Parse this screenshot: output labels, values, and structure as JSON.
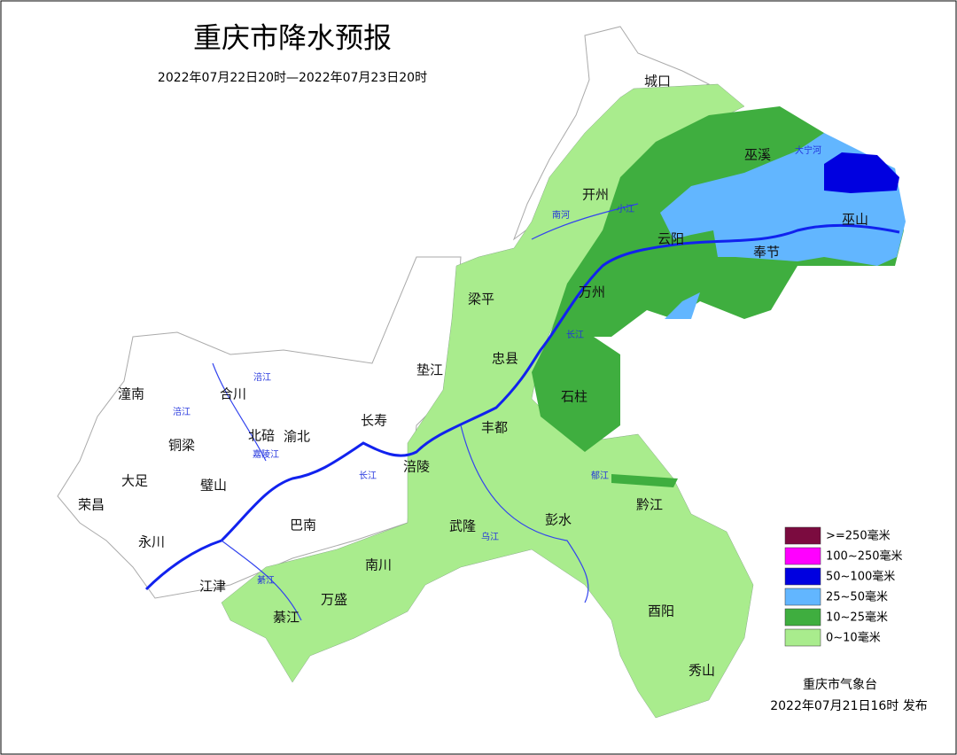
{
  "header": {
    "title": "重庆市降水预报",
    "period": "2022年07月22日20时—2022年07月23日20时"
  },
  "districts": [
    "城口",
    "巫溪",
    "开州",
    "巫山",
    "云阳",
    "奉节",
    "梁平",
    "万州",
    "忠县",
    "垫江",
    "石柱",
    "潼南",
    "合川",
    "长寿",
    "铜梁",
    "北碚",
    "渝北",
    "丰都",
    "涪陵",
    "大足",
    "荣昌",
    "璧山",
    "巴南",
    "武隆",
    "彭水",
    "黔江",
    "永川",
    "南川",
    "江津",
    "万盛",
    "綦江",
    "酉阳",
    "秀山"
  ],
  "rivers": [
    "大宁河",
    "南河",
    "小江",
    "长江",
    "长江",
    "涪江",
    "涪江",
    "嘉陵江",
    "乌江",
    "郁江",
    "綦江"
  ],
  "legend": {
    "items": [
      {
        "label": ">=250毫米",
        "color": "#7b0b3f"
      },
      {
        "label": "100~250毫米",
        "color": "#ff00ff"
      },
      {
        "label": "50~100毫米",
        "color": "#0000e0"
      },
      {
        "label": "25~50毫米",
        "color": "#62b6ff"
      },
      {
        "label": "10~25毫米",
        "color": "#3fae3f"
      },
      {
        "label": "0~10毫米",
        "color": "#a9ec8d"
      }
    ]
  },
  "footer": {
    "issuer": "重庆市气象台",
    "issued": "2022年07月21日16时 发布"
  }
}
